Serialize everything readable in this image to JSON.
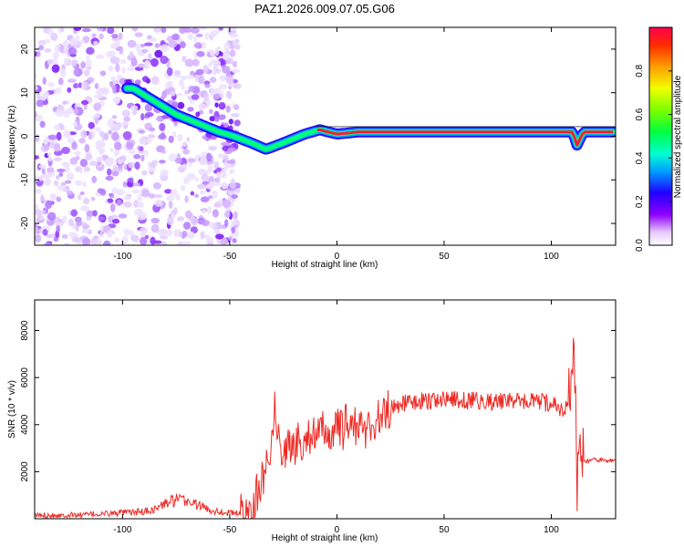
{
  "chart_data": [
    {
      "type": "heatmap",
      "title": "PAZ1.2026.009.07.05.G06",
      "xlabel": "Height of straight line (km)",
      "ylabel": "Frequency (Hz)",
      "xlim": [
        -141,
        130
      ],
      "ylim": [
        -25,
        25
      ],
      "xticks": [
        -100,
        -50,
        0,
        50,
        100
      ],
      "yticks": [
        -20,
        -10,
        0,
        10,
        20
      ],
      "colorbar": {
        "label": "Normalized spectral amplitude",
        "range": [
          0.0,
          1.0
        ],
        "ticks": [
          "0.0",
          "0.2",
          "0.4",
          "0.6",
          "0.8"
        ]
      },
      "ridge": {
        "description": "Main spectral line",
        "x": [
          -95,
          -85,
          -75,
          -65,
          -55,
          -48,
          -40,
          -33,
          -25,
          -15,
          -8,
          0,
          10,
          20,
          40,
          60,
          80,
          100,
          110,
          112,
          115,
          130
        ],
        "y": [
          11,
          8,
          5,
          3,
          1,
          0,
          -1.5,
          -3,
          -1.5,
          0.5,
          1.5,
          0.5,
          1,
          1,
          1,
          1,
          1,
          1,
          1,
          -2,
          1,
          1
        ]
      }
    },
    {
      "type": "line",
      "xlabel": "Height of straight line (km)",
      "ylabel": "SNR (10 * v/v)",
      "xlim": [
        -141,
        130
      ],
      "ylim": [
        0,
        9300
      ],
      "xticks": [
        -100,
        -50,
        0,
        50,
        100
      ],
      "yticks": [
        2000,
        4000,
        6000,
        8000
      ],
      "series": [
        {
          "name": "SNR",
          "color": "#ee2a24",
          "x": [
            -141,
            -120,
            -100,
            -90,
            -85,
            -80,
            -75,
            -70,
            -65,
            -60,
            -55,
            -50,
            -45,
            -42,
            -40,
            -38,
            -35,
            -33,
            -31,
            -29,
            -27,
            -25,
            -22,
            -20,
            -18,
            -15,
            -12,
            -10,
            -8,
            -5,
            -3,
            0,
            3,
            5,
            8,
            10,
            12,
            15,
            18,
            20,
            22,
            25,
            30,
            35,
            40,
            45,
            50,
            55,
            60,
            65,
            70,
            75,
            80,
            85,
            90,
            95,
            100,
            103,
            105,
            107,
            109,
            110,
            111,
            112,
            113,
            114,
            116,
            120,
            125,
            130
          ],
          "y": [
            150,
            160,
            250,
            300,
            400,
            650,
            800,
            750,
            600,
            400,
            300,
            250,
            220,
            250,
            400,
            900,
            1500,
            2400,
            3200,
            4600,
            3300,
            2900,
            3100,
            3000,
            3300,
            3400,
            3700,
            3300,
            3600,
            3800,
            3500,
            3900,
            3700,
            4200,
            3900,
            4000,
            3800,
            3900,
            4100,
            4300,
            4500,
            4700,
            4900,
            4950,
            5000,
            5050,
            5100,
            5050,
            5000,
            5050,
            4950,
            5000,
            5050,
            4950,
            5000,
            4950,
            4900,
            4800,
            4600,
            4800,
            5200,
            7200,
            6200,
            900,
            3000,
            2500,
            2450,
            2500,
            2500,
            2450
          ]
        }
      ]
    }
  ]
}
